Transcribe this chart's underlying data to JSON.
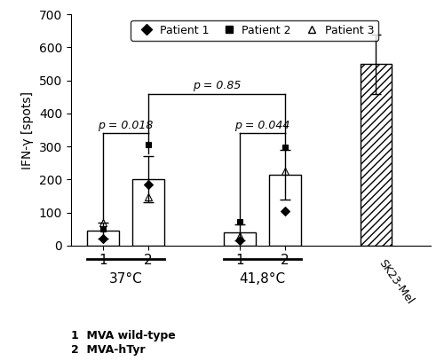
{
  "bar_positions": [
    1,
    2,
    4,
    5,
    7
  ],
  "bar_heights": [
    45,
    200,
    40,
    215,
    550
  ],
  "bar_errors": [
    25,
    70,
    25,
    75,
    90
  ],
  "bar_colors": [
    "white",
    "white",
    "white",
    "white",
    "white"
  ],
  "bar_hatches": [
    "",
    "",
    "",
    "",
    "////"
  ],
  "bar_edgecolors": [
    "black",
    "black",
    "black",
    "black",
    "black"
  ],
  "bar_width": 0.7,
  "ylim": [
    0,
    700
  ],
  "yticks": [
    0,
    100,
    200,
    300,
    400,
    500,
    600,
    700
  ],
  "ylabel": "IFN-γ [spots]",
  "group_labels": [
    "37°C",
    "41,8°C"
  ],
  "legend_labels": [
    "Patient 1",
    "Patient 2",
    "Patient 3"
  ],
  "footnote1": "1  MVA wild-type",
  "footnote2": "2  MVA-hTyr",
  "p_value_1": "p = 0.018",
  "p_value_2": "p = 0.044",
  "p_value_3": "p = 0.85",
  "individual_points": {
    "37_1": {
      "patient1": 20,
      "patient2": 50,
      "patient3": 70
    },
    "37_2": {
      "patient1": 185,
      "patient2": 305,
      "patient3": 148
    },
    "41_1": {
      "patient1": 15,
      "patient2": 72,
      "patient3": 28
    },
    "41_2": {
      "patient1": 105,
      "patient2": 298,
      "patient3": 225
    }
  }
}
